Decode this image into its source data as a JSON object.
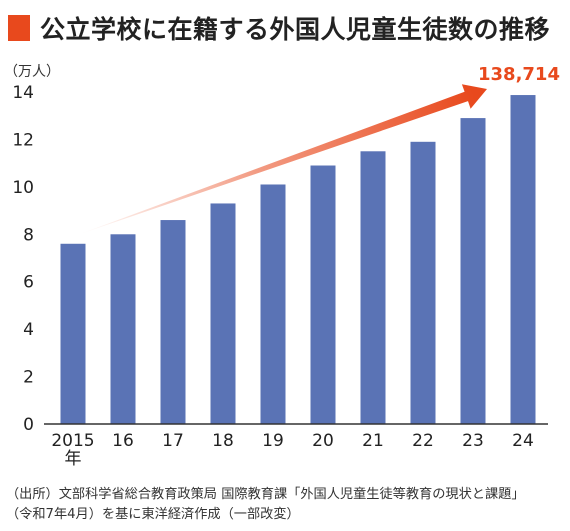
{
  "title": "公立学校に在籍する外国人児童生徒数の推移",
  "colors": {
    "bar": "#5a73b5",
    "accent": "#e8491d",
    "axis": "#333333"
  },
  "chart_data": {
    "type": "bar",
    "title": "公立学校に在籍する外国人児童生徒数の推移",
    "ylabel": "（万人）",
    "xlabel": "",
    "x_unit": "年",
    "ylim": [
      0,
      14
    ],
    "yticks": [
      0,
      2,
      4,
      6,
      8,
      10,
      12,
      14
    ],
    "categories": [
      "2015",
      "16",
      "17",
      "18",
      "19",
      "20",
      "21",
      "22",
      "23",
      "24"
    ],
    "values": [
      7.6,
      8.0,
      8.6,
      9.3,
      10.1,
      10.9,
      11.5,
      11.9,
      12.9,
      13.8714
    ],
    "annotation": {
      "text": "138,714",
      "target_category": "24"
    },
    "grid": false,
    "legend": "none"
  },
  "source": {
    "line1": "（出所）文部科学省総合教育政策局 国際教育課「外国人児童生徒等教育の現状と課題」",
    "line2": "（令和7年4月）を基に東洋経済作成（一部改変）"
  }
}
